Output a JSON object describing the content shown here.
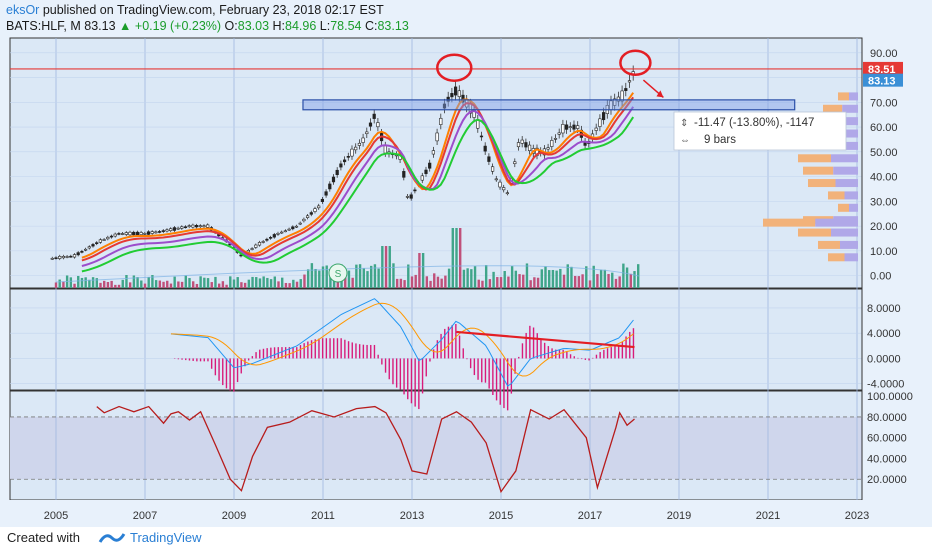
{
  "header": {
    "author": "eksOr",
    "published": " published on TradingView.com, February 23, 2018 02:17 EST",
    "symbol": "BATS:HLF, M",
    "last": "83.13",
    "change": "+0.19 (+0.23%)",
    "o_label": "O:",
    "o_value": "83.03",
    "h_label": "H:",
    "h_value": "84.96",
    "l_label": "L:",
    "l_value": "78.54",
    "c_label": "C:",
    "c_value": "83.13"
  },
  "colors": {
    "price_up": "#26a69a",
    "price_down": "#ef5350",
    "red_line": "#e53935",
    "box": "#6f8ecf",
    "ema_orange": "#ff7f00",
    "ema_red": "#e53935",
    "ema_purple": "#9c4dcc",
    "ema_green": "#22cc33",
    "macd_blue": "#2196f3",
    "macd_orange": "#ff9800",
    "macd_hist": "#d81b7a",
    "rsi": "#b71c1c"
  },
  "price_axis": {
    "ticks": [
      "90.00",
      "80.00",
      "70.00",
      "60.00",
      "50.00",
      "40.00",
      "30.00",
      "20.00",
      "10.00",
      "0.00"
    ],
    "last_label": "83.51",
    "current_label": "83.13"
  },
  "macd_axis": {
    "ticks": [
      "8.0000",
      "4.0000",
      "0.0000",
      "-4.0000"
    ]
  },
  "rsi_axis": {
    "ticks": [
      "100.0000",
      "80.0000",
      "60.0000",
      "40.0000",
      "20.0000"
    ]
  },
  "time_axis": {
    "ticks": [
      "2005",
      "2007",
      "2009",
      "2011",
      "2013",
      "2015",
      "2017",
      "2019",
      "2021",
      "2023"
    ]
  },
  "measure": {
    "change": "-11.47 (-13.80%), -1147",
    "bars": "9 bars"
  },
  "marker": "S",
  "footer": {
    "created": "Created with",
    "brand": "TradingView"
  },
  "chart_data": {
    "type": "candlestick",
    "price_ylim": [
      -5,
      96
    ],
    "horizontal_line": 83.51,
    "resistance_zone": [
      67,
      71
    ],
    "price_path": [
      [
        "2004-12",
        7
      ],
      [
        "2005-06",
        8
      ],
      [
        "2006-01",
        14
      ],
      [
        "2006-06",
        17
      ],
      [
        "2007-01",
        17
      ],
      [
        "2007-06",
        18
      ],
      [
        "2008-01",
        20
      ],
      [
        "2008-06",
        20
      ],
      [
        "2008-11",
        14
      ],
      [
        "2009-03",
        8
      ],
      [
        "2009-08",
        13
      ],
      [
        "2010-01",
        17
      ],
      [
        "2010-06",
        20
      ],
      [
        "2010-12",
        28
      ],
      [
        "2011-06",
        45
      ],
      [
        "2011-12",
        55
      ],
      [
        "2012-03",
        65
      ],
      [
        "2012-06",
        50
      ],
      [
        "2012-10",
        48
      ],
      [
        "2012-12",
        30
      ],
      [
        "2013-06",
        45
      ],
      [
        "2013-10",
        70
      ],
      [
        "2014-01",
        75
      ],
      [
        "2014-06",
        65
      ],
      [
        "2014-09",
        50
      ],
      [
        "2014-12",
        38
      ],
      [
        "2015-03",
        33
      ],
      [
        "2015-06",
        55
      ],
      [
        "2015-10",
        50
      ],
      [
        "2016-01",
        50
      ],
      [
        "2016-06",
        60
      ],
      [
        "2016-10",
        60
      ],
      [
        "2016-12",
        52
      ],
      [
        "2017-06",
        68
      ],
      [
        "2017-10",
        73
      ],
      [
        "2018-01",
        83
      ]
    ],
    "macd_ylim": [
      -5,
      11
    ],
    "macd_path": [
      [
        "2007-08",
        3.9
      ],
      [
        "2008-06",
        3.3
      ],
      [
        "2009-01",
        -1.5
      ],
      [
        "2009-06",
        -0.8
      ],
      [
        "2010-06",
        2
      ],
      [
        "2011-06",
        7
      ],
      [
        "2012-03",
        9.5
      ],
      [
        "2012-10",
        5
      ],
      [
        "2013-03",
        -0.5
      ],
      [
        "2013-09",
        3
      ],
      [
        "2014-01",
        6
      ],
      [
        "2014-09",
        2
      ],
      [
        "2015-03",
        -4.6
      ],
      [
        "2015-09",
        0
      ],
      [
        "2016-06",
        1.6
      ],
      [
        "2017-01",
        1.3
      ],
      [
        "2017-09",
        3.3
      ],
      [
        "2018-01",
        6.3
      ]
    ],
    "macd_trendline": [
      [
        "2014-01",
        4.2
      ],
      [
        "2018-01",
        1.8
      ]
    ],
    "rsi_ylim": [
      0,
      105
    ],
    "rsi_levels": [
      80,
      20
    ],
    "rsi_path": [
      [
        "2005-12",
        90
      ],
      [
        "2006-02",
        84
      ],
      [
        "2006-06",
        90
      ],
      [
        "2006-10",
        85
      ],
      [
        "2007-02",
        90
      ],
      [
        "2007-06",
        74
      ],
      [
        "2007-08",
        83
      ],
      [
        "2007-10",
        85
      ],
      [
        "2008-01",
        77
      ],
      [
        "2008-04",
        85
      ],
      [
        "2008-08",
        53
      ],
      [
        "2008-12",
        20
      ],
      [
        "2009-03",
        9
      ],
      [
        "2009-06",
        42
      ],
      [
        "2009-10",
        70
      ],
      [
        "2010-04",
        75
      ],
      [
        "2010-10",
        86
      ],
      [
        "2011-04",
        80
      ],
      [
        "2011-10",
        88
      ],
      [
        "2012-03",
        90
      ],
      [
        "2012-06",
        84
      ],
      [
        "2012-10",
        58
      ],
      [
        "2013-01",
        28
      ],
      [
        "2013-05",
        25
      ],
      [
        "2013-09",
        78
      ],
      [
        "2014-01",
        85
      ],
      [
        "2014-05",
        75
      ],
      [
        "2014-09",
        55
      ],
      [
        "2015-01",
        8
      ],
      [
        "2015-05",
        28
      ],
      [
        "2015-09",
        87
      ],
      [
        "2016-02",
        78
      ],
      [
        "2016-06",
        87
      ],
      [
        "2016-12",
        60
      ],
      [
        "2017-03",
        12
      ],
      [
        "2017-08",
        70
      ],
      [
        "2017-09",
        84
      ],
      [
        "2017-11",
        72
      ],
      [
        "2018-01",
        78
      ]
    ]
  }
}
